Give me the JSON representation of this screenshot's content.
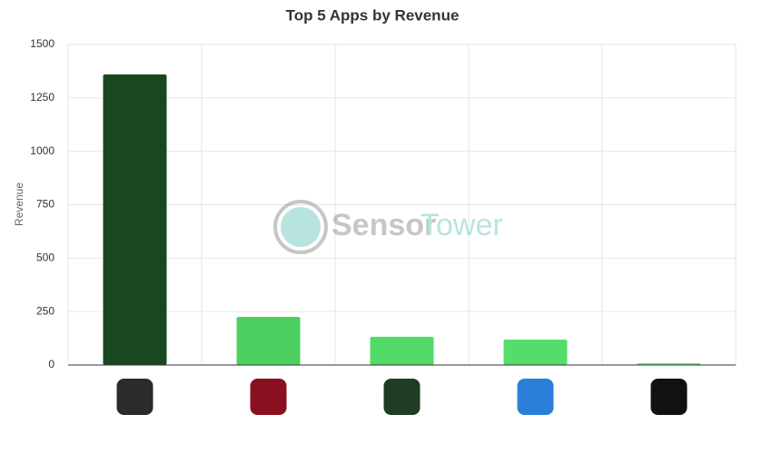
{
  "chart_data": {
    "type": "bar",
    "title": "Top 5 Apps by Revenue",
    "y_label": "Revenue",
    "categories": [
      null,
      null,
      null,
      null,
      null
    ],
    "values": [
      1360,
      225,
      132,
      119,
      8
    ],
    "colors": [
      "#19471f",
      "#4cd060",
      "#52da69",
      "#55dd6c",
      "#5ae171"
    ],
    "ylim": [
      0,
      1500
    ],
    "yticks": [
      0,
      250,
      500,
      750,
      1000,
      1250,
      1500
    ],
    "grid": true,
    "watermark": [
      "Sensor",
      "Tower"
    ]
  }
}
